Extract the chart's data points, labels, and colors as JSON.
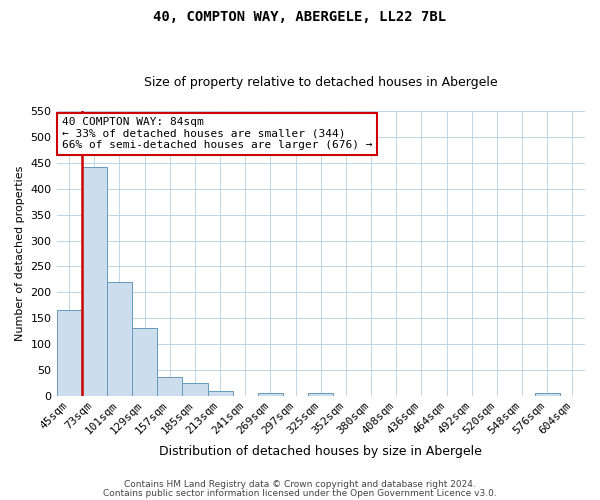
{
  "title": "40, COMPTON WAY, ABERGELE, LL22 7BL",
  "subtitle": "Size of property relative to detached houses in Abergele",
  "xlabel": "Distribution of detached houses by size in Abergele",
  "ylabel": "Number of detached properties",
  "bar_labels": [
    "45sqm",
    "73sqm",
    "101sqm",
    "129sqm",
    "157sqm",
    "185sqm",
    "213sqm",
    "241sqm",
    "269sqm",
    "297sqm",
    "325sqm",
    "352sqm",
    "380sqm",
    "408sqm",
    "436sqm",
    "464sqm",
    "492sqm",
    "520sqm",
    "548sqm",
    "576sqm",
    "604sqm"
  ],
  "bar_values": [
    165,
    443,
    220,
    130,
    36,
    25,
    9,
    0,
    5,
    0,
    5,
    0,
    0,
    0,
    0,
    0,
    0,
    0,
    0,
    5,
    0
  ],
  "bar_color": "#ccdded",
  "bar_edge_color": "#6699bb",
  "vline_x": 0.5,
  "vline_color": "#cc0000",
  "ylim": [
    0,
    550
  ],
  "yticks": [
    0,
    50,
    100,
    150,
    200,
    250,
    300,
    350,
    400,
    450,
    500,
    550
  ],
  "annotation_title": "40 COMPTON WAY: 84sqm",
  "annotation_line1": "← 33% of detached houses are smaller (344)",
  "annotation_line2": "66% of semi-detached houses are larger (676) →",
  "footer_line1": "Contains HM Land Registry data © Crown copyright and database right 2024.",
  "footer_line2": "Contains public sector information licensed under the Open Government Licence v3.0.",
  "bg_color": "#ffffff",
  "grid_color": "#c0d4e8",
  "annotation_box_color": "#ffffff",
  "annotation_box_edge": "#cc0000",
  "title_fontsize": 10,
  "subtitle_fontsize": 9,
  "ylabel_fontsize": 8,
  "xlabel_fontsize": 9,
  "tick_fontsize": 8,
  "ann_fontsize": 8,
  "footer_fontsize": 6.5
}
